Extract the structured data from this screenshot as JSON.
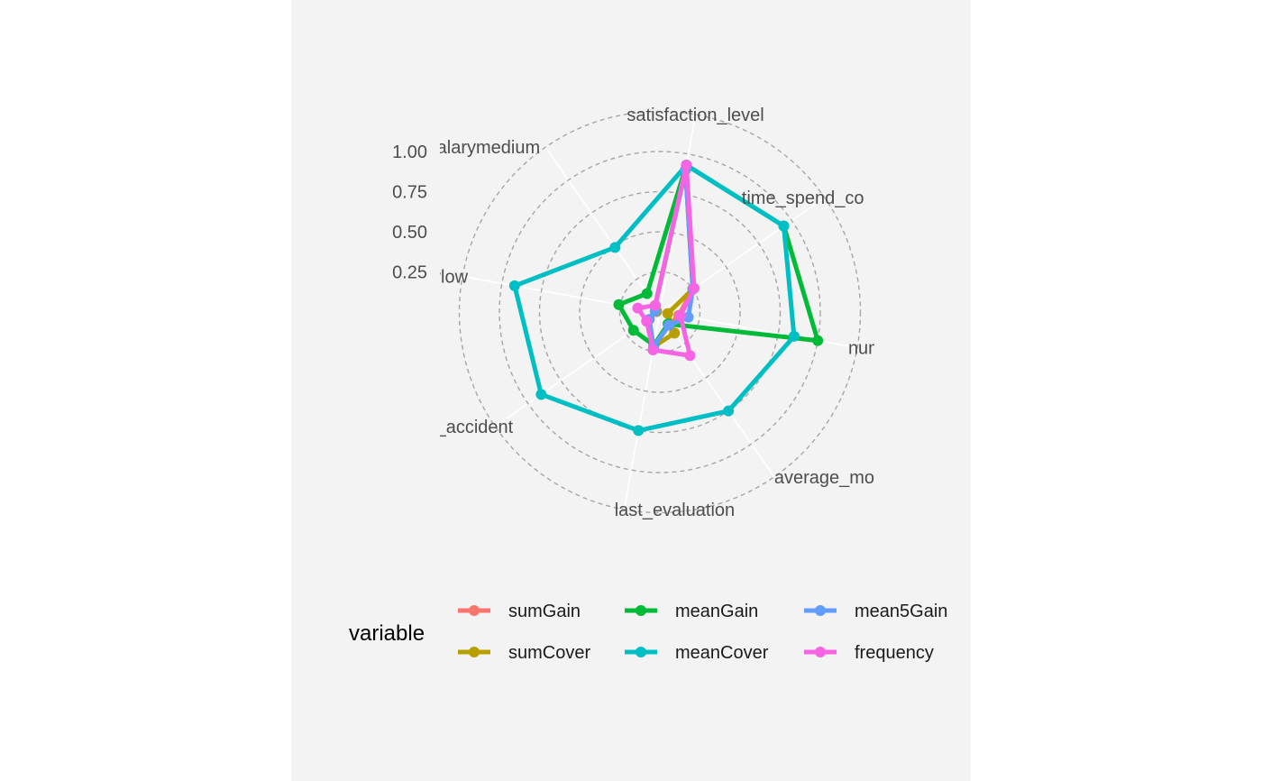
{
  "chart_data": {
    "type": "radar",
    "categories": [
      "satisfaction_level",
      "time_spend_company",
      "number_project",
      "average_montly_hours",
      "last_evaluation",
      "Work_accident",
      "salarylow",
      "salarymedium"
    ],
    "category_labels": [
      "satisfaction_level",
      "time_spend_co",
      "number_pro",
      "average_montly_hours",
      "last_evaluation",
      "rk_accident",
      "salarylow",
      "salarymedium"
    ],
    "radial_ticks": [
      "1.00",
      "0.75",
      "0.50",
      "0.25"
    ],
    "tick_values": [
      1.0,
      0.75,
      0.5,
      0.25
    ],
    "rlim": [
      0,
      1.25
    ],
    "grid": "dashed",
    "legend": {
      "title": "variable",
      "position": "bottom"
    },
    "series": [
      {
        "name": "sumGain",
        "color": "#F8766D",
        "values": [
          0.9,
          0.25,
          0.12,
          0.1,
          0.22,
          0.1,
          0.02,
          0.05
        ]
      },
      {
        "name": "sumCover",
        "color": "#B79F00",
        "values": [
          0.9,
          0.25,
          0.05,
          0.16,
          0.22,
          0.1,
          0.02,
          0.05
        ]
      },
      {
        "name": "meanGain",
        "color": "#00BA38",
        "values": [
          0.93,
          0.94,
          1.0,
          0.09,
          0.21,
          0.2,
          0.26,
          0.14
        ]
      },
      {
        "name": "meanCover",
        "color": "#00BFC4",
        "values": [
          0.93,
          0.94,
          0.85,
          0.75,
          0.75,
          0.9,
          0.92,
          0.49
        ]
      },
      {
        "name": "mean5Gain",
        "color": "#619CFF",
        "values": [
          0.9,
          0.25,
          0.18,
          0.1,
          0.22,
          0.08,
          0.03,
          0.05
        ]
      },
      {
        "name": "frequency",
        "color": "#F564E3",
        "values": [
          0.93,
          0.26,
          0.13,
          0.33,
          0.24,
          0.1,
          0.14,
          0.05
        ]
      }
    ]
  }
}
